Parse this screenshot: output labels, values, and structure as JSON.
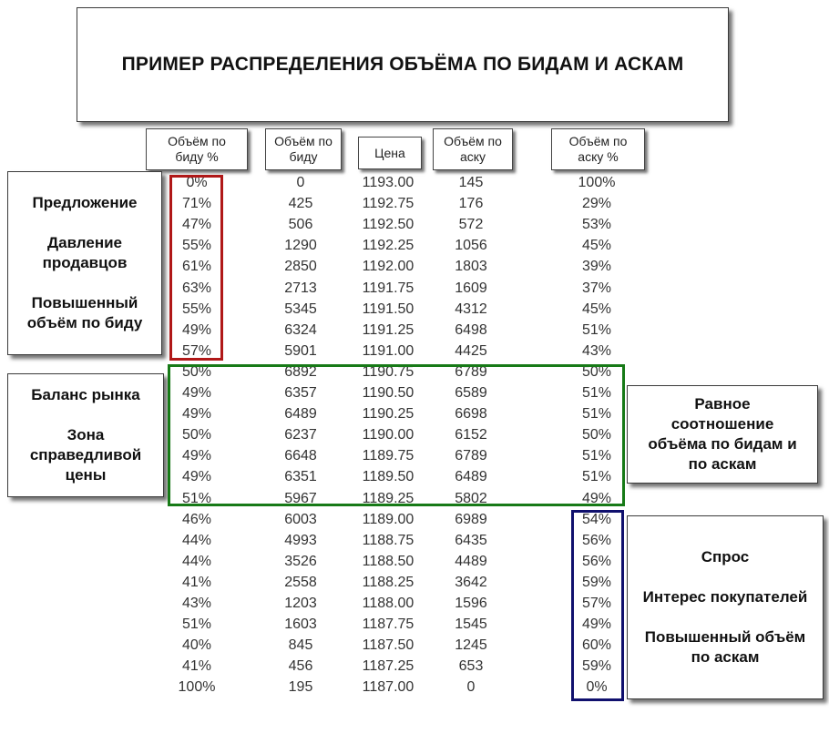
{
  "title": "ПРИМЕР РАСПРЕДЕЛЕНИЯ ОБЪЁМА ПО БИДАМ И АСКАМ",
  "headers": {
    "bid_pct": [
      "Объём по",
      "биду %"
    ],
    "bid_vol": [
      "Объём по",
      "биду"
    ],
    "price": [
      "Цена"
    ],
    "ask_vol": [
      "Объём по",
      "аску"
    ],
    "ask_pct": [
      "Объём по",
      "аску %"
    ]
  },
  "left_top": [
    "Предложение",
    "",
    "Давление",
    "продавцов",
    "",
    "Повышенный",
    "объём по биду"
  ],
  "left_mid": [
    "Баланс рынка",
    "",
    "Зона",
    "справедливой",
    "цены"
  ],
  "right_mid": [
    "Равное",
    "соотношение",
    "объёма по бидам и",
    "по аскам"
  ],
  "right_bot": [
    "Спрос",
    "",
    "Интерес покупателей",
    "",
    "Повышенный объём",
    "по аскам"
  ],
  "rows": [
    [
      "0%",
      "0",
      "1193.00",
      "145",
      "100%"
    ],
    [
      "71%",
      "425",
      "1192.75",
      "176",
      "29%"
    ],
    [
      "47%",
      "506",
      "1192.50",
      "572",
      "53%"
    ],
    [
      "55%",
      "1290",
      "1192.25",
      "1056",
      "45%"
    ],
    [
      "61%",
      "2850",
      "1192.00",
      "1803",
      "39%"
    ],
    [
      "63%",
      "2713",
      "1191.75",
      "1609",
      "37%"
    ],
    [
      "55%",
      "5345",
      "1191.50",
      "4312",
      "45%"
    ],
    [
      "49%",
      "6324",
      "1191.25",
      "6498",
      "51%"
    ],
    [
      "57%",
      "5901",
      "1191.00",
      "4425",
      "43%"
    ],
    [
      "50%",
      "6892",
      "1190.75",
      "6789",
      "50%"
    ],
    [
      "49%",
      "6357",
      "1190.50",
      "6589",
      "51%"
    ],
    [
      "49%",
      "6489",
      "1190.25",
      "6698",
      "51%"
    ],
    [
      "50%",
      "6237",
      "1190.00",
      "6152",
      "50%"
    ],
    [
      "49%",
      "6648",
      "1189.75",
      "6789",
      "51%"
    ],
    [
      "49%",
      "6351",
      "1189.50",
      "6489",
      "51%"
    ],
    [
      "51%",
      "5967",
      "1189.25",
      "5802",
      "49%"
    ],
    [
      "46%",
      "6003",
      "1189.00",
      "6989",
      "54%"
    ],
    [
      "44%",
      "4993",
      "1188.75",
      "6435",
      "56%"
    ],
    [
      "44%",
      "3526",
      "1188.50",
      "4489",
      "56%"
    ],
    [
      "41%",
      "2558",
      "1188.25",
      "3642",
      "59%"
    ],
    [
      "43%",
      "1203",
      "1188.00",
      "1596",
      "57%"
    ],
    [
      "51%",
      "1603",
      "1187.75",
      "1545",
      "49%"
    ],
    [
      "40%",
      "845",
      "1187.50",
      "1245",
      "60%"
    ],
    [
      "41%",
      "456",
      "1187.25",
      "653",
      "59%"
    ],
    [
      "100%",
      "195",
      "1187.00",
      "0",
      "0%"
    ]
  ],
  "colors": {
    "red_frame": "#b01818",
    "green_frame": "#177a17",
    "blue_frame": "#10106e"
  }
}
